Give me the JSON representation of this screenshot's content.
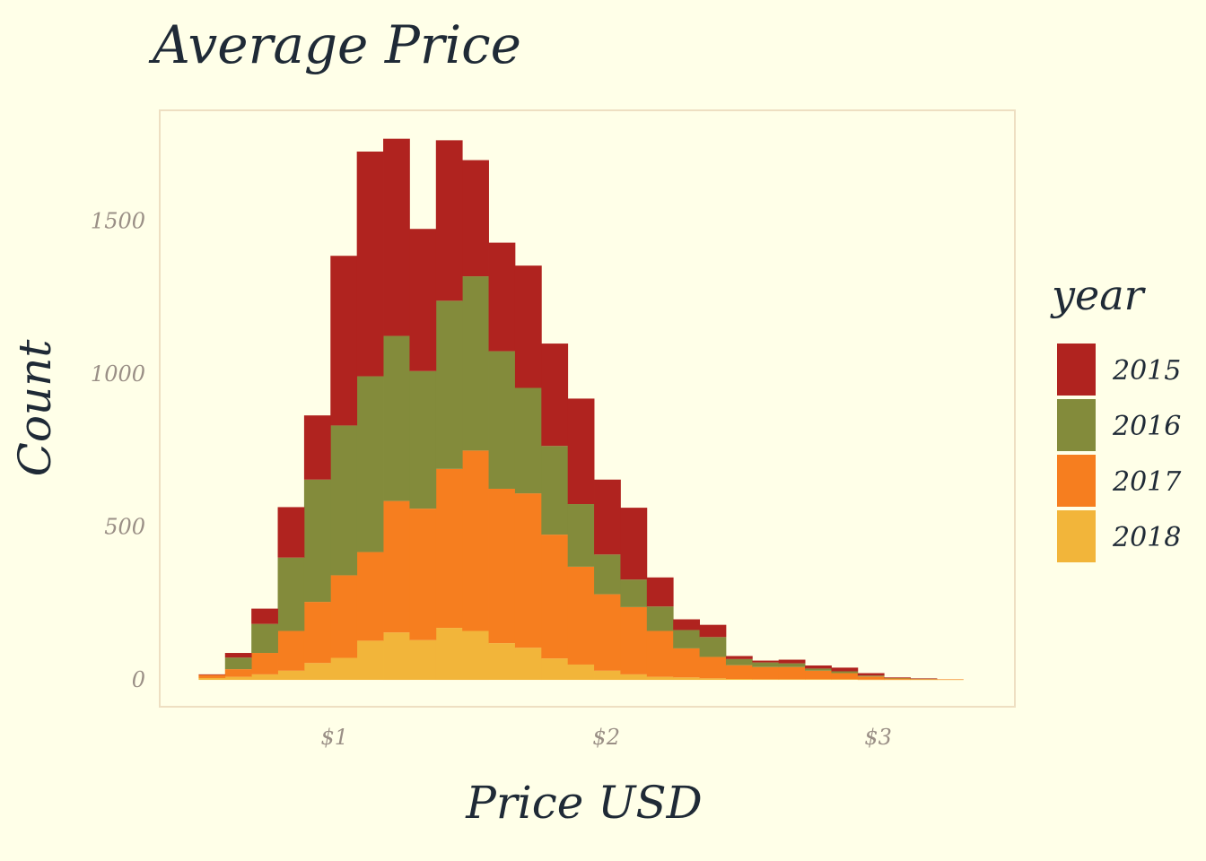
{
  "chart_data": {
    "type": "bar",
    "stacked": true,
    "title": "Average Price",
    "xlabel": "Price USD",
    "ylabel": "Count",
    "legend": {
      "title": "year",
      "position": "right"
    },
    "x_ticks": [
      {
        "value": 1,
        "label": "$1"
      },
      {
        "value": 2,
        "label": "$2"
      },
      {
        "value": 3,
        "label": "$3"
      }
    ],
    "y_ticks": [
      0,
      500,
      1000,
      1500
    ],
    "xlim": [
      0.36,
      3.5
    ],
    "ylim": [
      -85,
      1860
    ],
    "bin_width": 0.097,
    "bin_starts": [
      0.5,
      0.597,
      0.694,
      0.791,
      0.888,
      0.985,
      1.082,
      1.179,
      1.276,
      1.373,
      1.47,
      1.567,
      1.664,
      1.761,
      1.858,
      1.955,
      2.052,
      2.149,
      2.246,
      2.343,
      2.44,
      2.537,
      2.634,
      2.731,
      2.828,
      2.925,
      3.022,
      3.119,
      3.216
    ],
    "series": [
      {
        "name": "2018",
        "color": "#F2B53A",
        "values": [
          6,
          10,
          18,
          30,
          55,
          72,
          128,
          155,
          130,
          170,
          160,
          120,
          105,
          70,
          50,
          30,
          18,
          10,
          8,
          5,
          3,
          2,
          2,
          2,
          2,
          1,
          1,
          1,
          1
        ]
      },
      {
        "name": "2017",
        "color": "#F67E1F",
        "values": [
          10,
          25,
          70,
          130,
          200,
          270,
          290,
          430,
          430,
          520,
          590,
          505,
          505,
          405,
          320,
          250,
          220,
          150,
          95,
          70,
          45,
          40,
          40,
          28,
          20,
          10,
          4,
          2,
          1
        ]
      },
      {
        "name": "2016",
        "color": "#838B3B",
        "values": [
          0,
          38,
          95,
          240,
          400,
          490,
          575,
          540,
          450,
          550,
          570,
          450,
          345,
          290,
          205,
          130,
          90,
          80,
          60,
          65,
          20,
          15,
          12,
          7,
          6,
          3,
          1,
          1,
          0
        ]
      },
      {
        "name": "2015",
        "color": "#B0231F",
        "values": [
          2,
          15,
          50,
          165,
          210,
          555,
          735,
          645,
          465,
          525,
          380,
          355,
          400,
          335,
          345,
          245,
          235,
          95,
          35,
          40,
          10,
          6,
          12,
          10,
          12,
          8,
          2,
          1,
          0
        ]
      }
    ],
    "legend_order": [
      "2015",
      "2016",
      "2017",
      "2018"
    ],
    "grid": false
  }
}
